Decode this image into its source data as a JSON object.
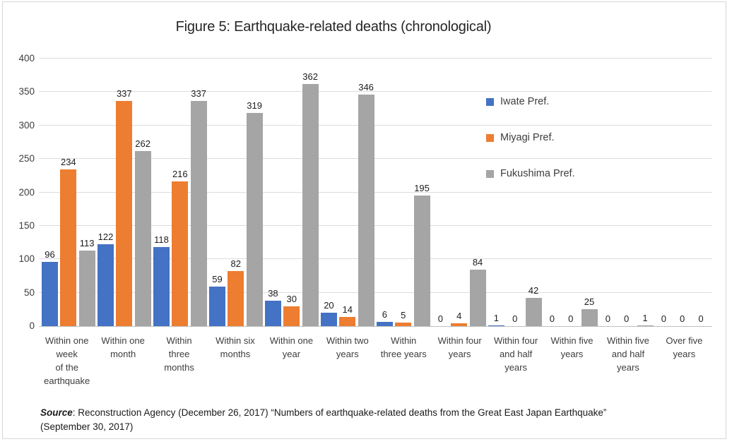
{
  "page": {
    "source": {
      "label": "Source",
      "line1_rest": ": Reconstruction Agency (December 26, 2017) “Numbers of earthquake-related deaths from the Great East Japan Earthquake”",
      "line2": "(September 30, 2017)"
    }
  },
  "chart_data": {
    "type": "bar",
    "title": "Figure 5: Earthquake-related deaths (chronological)",
    "categories": [
      "Within one week of the earthquake",
      "Within one month",
      "Within three months",
      "Within six months",
      "Within one year",
      "Within two years",
      "Within three years",
      "Within four years",
      "Within four and half years",
      "Within five years",
      "Within five and half years",
      "Over five years"
    ],
    "category_display_lines": [
      [
        "Within one",
        "week",
        "of the",
        "earthquake"
      ],
      [
        "Within one",
        "month"
      ],
      [
        "Within",
        "three",
        "months"
      ],
      [
        "Within six",
        "months"
      ],
      [
        "Within one",
        "year"
      ],
      [
        "Within two",
        "years"
      ],
      [
        "Within",
        "three years"
      ],
      [
        "Within four",
        "years"
      ],
      [
        "Within four",
        "and half",
        "years"
      ],
      [
        "Within five",
        "years"
      ],
      [
        "Within five",
        "and half",
        "years"
      ],
      [
        "Over five",
        "years"
      ]
    ],
    "series": [
      {
        "name": "Iwate Pref.",
        "color": "#4472C4",
        "values": [
          96,
          122,
          118,
          59,
          38,
          20,
          6,
          0,
          1,
          0,
          0,
          0
        ]
      },
      {
        "name": "Miyagi Pref.",
        "color": "#ED7D31",
        "values": [
          234,
          337,
          216,
          82,
          30,
          14,
          5,
          4,
          0,
          0,
          0,
          0
        ]
      },
      {
        "name": "Fukushima Pref.",
        "color": "#A5A5A5",
        "values": [
          113,
          262,
          337,
          319,
          362,
          346,
          195,
          84,
          42,
          25,
          1,
          0
        ]
      }
    ],
    "xlabel": "",
    "ylabel": "",
    "ylim": [
      0,
      400
    ],
    "yticks": [
      0,
      50,
      100,
      150,
      200,
      250,
      300,
      350,
      400
    ],
    "grid": true,
    "data_labels": true,
    "legend_position": "right"
  },
  "colors": {
    "iwate_blue": "#4472C4",
    "miyagi_orange": "#ED7D31",
    "fukushima_gray": "#A5A5A5",
    "gridline": "#DCDCDC",
    "axis_line": "#C0C0C0",
    "frame_border": "#D6D6D6"
  }
}
